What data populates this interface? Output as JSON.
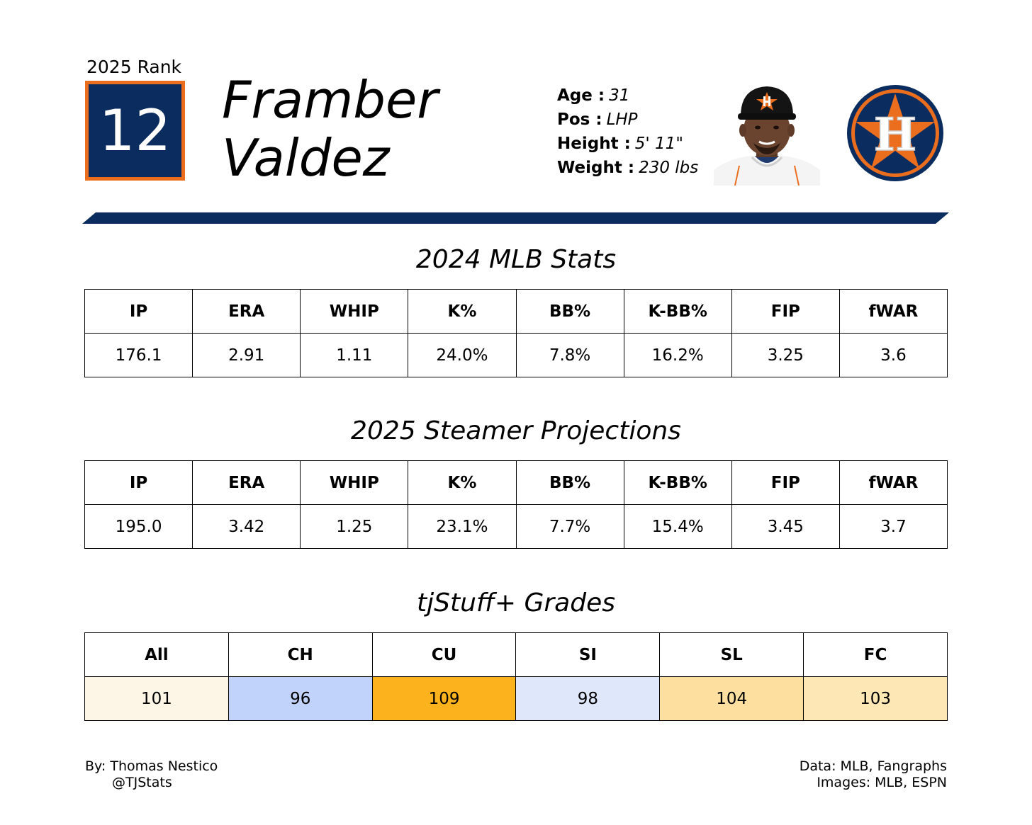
{
  "header": {
    "rank_label": "2025 Rank",
    "rank": "12",
    "first_name": "Framber",
    "last_name": "Valdez",
    "bio": [
      {
        "label": "Age :",
        "value": "31"
      },
      {
        "label": "Pos :",
        "value": "LHP"
      },
      {
        "label": "Height :",
        "value": "5' 11\""
      },
      {
        "label": "Weight :",
        "value": "230 lbs"
      }
    ],
    "team_logo_letter": "H"
  },
  "colors": {
    "navy": "#0b2c5e",
    "orange": "#eb6e1f",
    "grade_colors": [
      "#fdf6e6",
      "#c2d3fb",
      "#fbb21c",
      "#dfe7fb",
      "#fde0a0",
      "#fde8b5"
    ]
  },
  "stats_2024": {
    "title": "2024 MLB Stats",
    "headers": [
      "IP",
      "ERA",
      "WHIP",
      "K%",
      "BB%",
      "K-BB%",
      "FIP",
      "fWAR"
    ],
    "values": [
      "176.1",
      "2.91",
      "1.11",
      "24.0%",
      "7.8%",
      "16.2%",
      "3.25",
      "3.6"
    ]
  },
  "projections_2025": {
    "title": "2025 Steamer Projections",
    "headers": [
      "IP",
      "ERA",
      "WHIP",
      "K%",
      "BB%",
      "K-BB%",
      "FIP",
      "fWAR"
    ],
    "values": [
      "195.0",
      "3.42",
      "1.25",
      "23.1%",
      "7.7%",
      "15.4%",
      "3.45",
      "3.7"
    ]
  },
  "grades": {
    "title": "tjStuff+ Grades",
    "headers": [
      "All",
      "CH",
      "CU",
      "SI",
      "SL",
      "FC"
    ],
    "values": [
      "101",
      "96",
      "109",
      "98",
      "104",
      "103"
    ]
  },
  "footer": {
    "author": "By: Thomas Nestico",
    "handle": "@TJStats",
    "data_source": "Data: MLB, Fangraphs",
    "image_source": "Images: MLB, ESPN"
  }
}
